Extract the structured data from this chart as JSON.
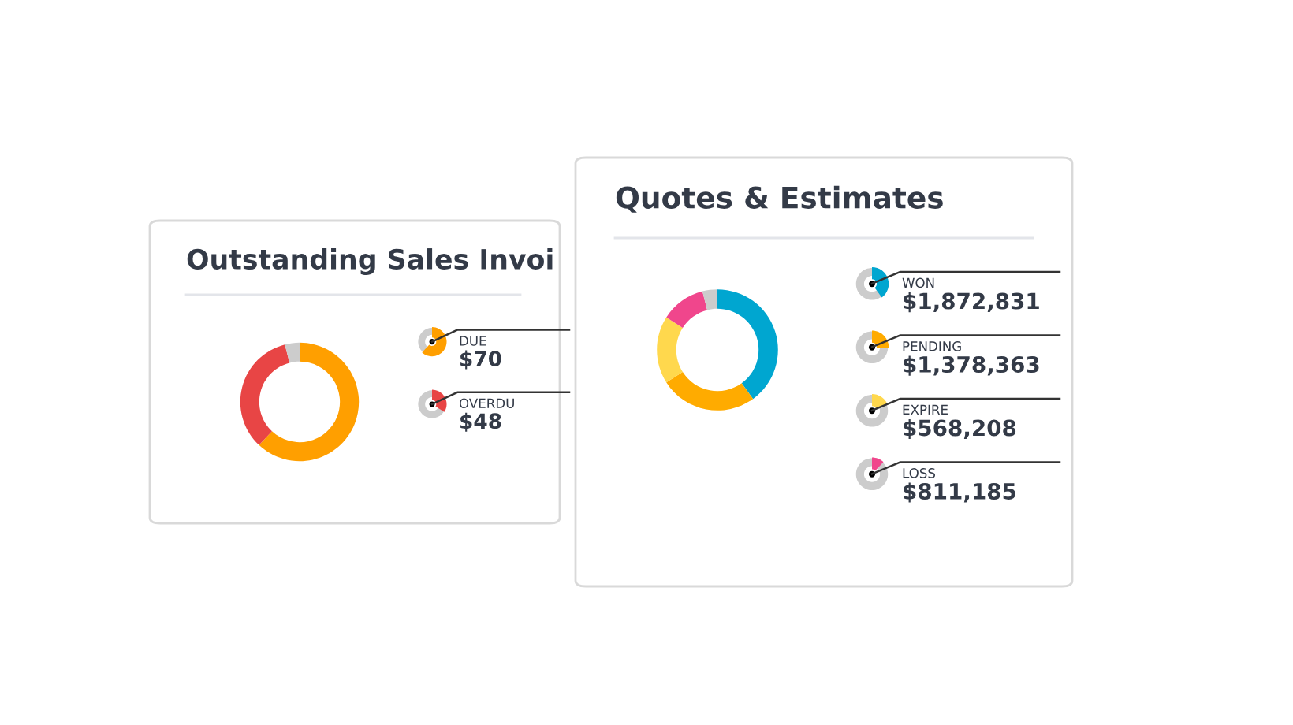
{
  "chart_data": [
    {
      "type": "donut",
      "title": "Outstanding Sales Invoi",
      "categories": [
        "DUE",
        "OVERDU",
        null
      ],
      "values": [
        62,
        34,
        4
      ],
      "colors": [
        "#ff9f00",
        "#e84545",
        "#cccccc"
      ],
      "annotations": [
        "$70",
        "$48"
      ],
      "legend": "right"
    },
    {
      "type": "donut",
      "title": "Quotes & Estimates",
      "categories": [
        "WON",
        "PENDING",
        "EXPIRE",
        "LOSS",
        null
      ],
      "values": [
        40,
        26,
        18,
        12,
        4
      ],
      "colors": [
        "#00a6d0",
        "#ffab00",
        "#ffd84d",
        "#f0468c",
        "#cccccc"
      ],
      "annotations": [
        "$1,872,831",
        "$1,378,363",
        "$568,208",
        "$811,185"
      ],
      "legend": "right"
    }
  ]
}
